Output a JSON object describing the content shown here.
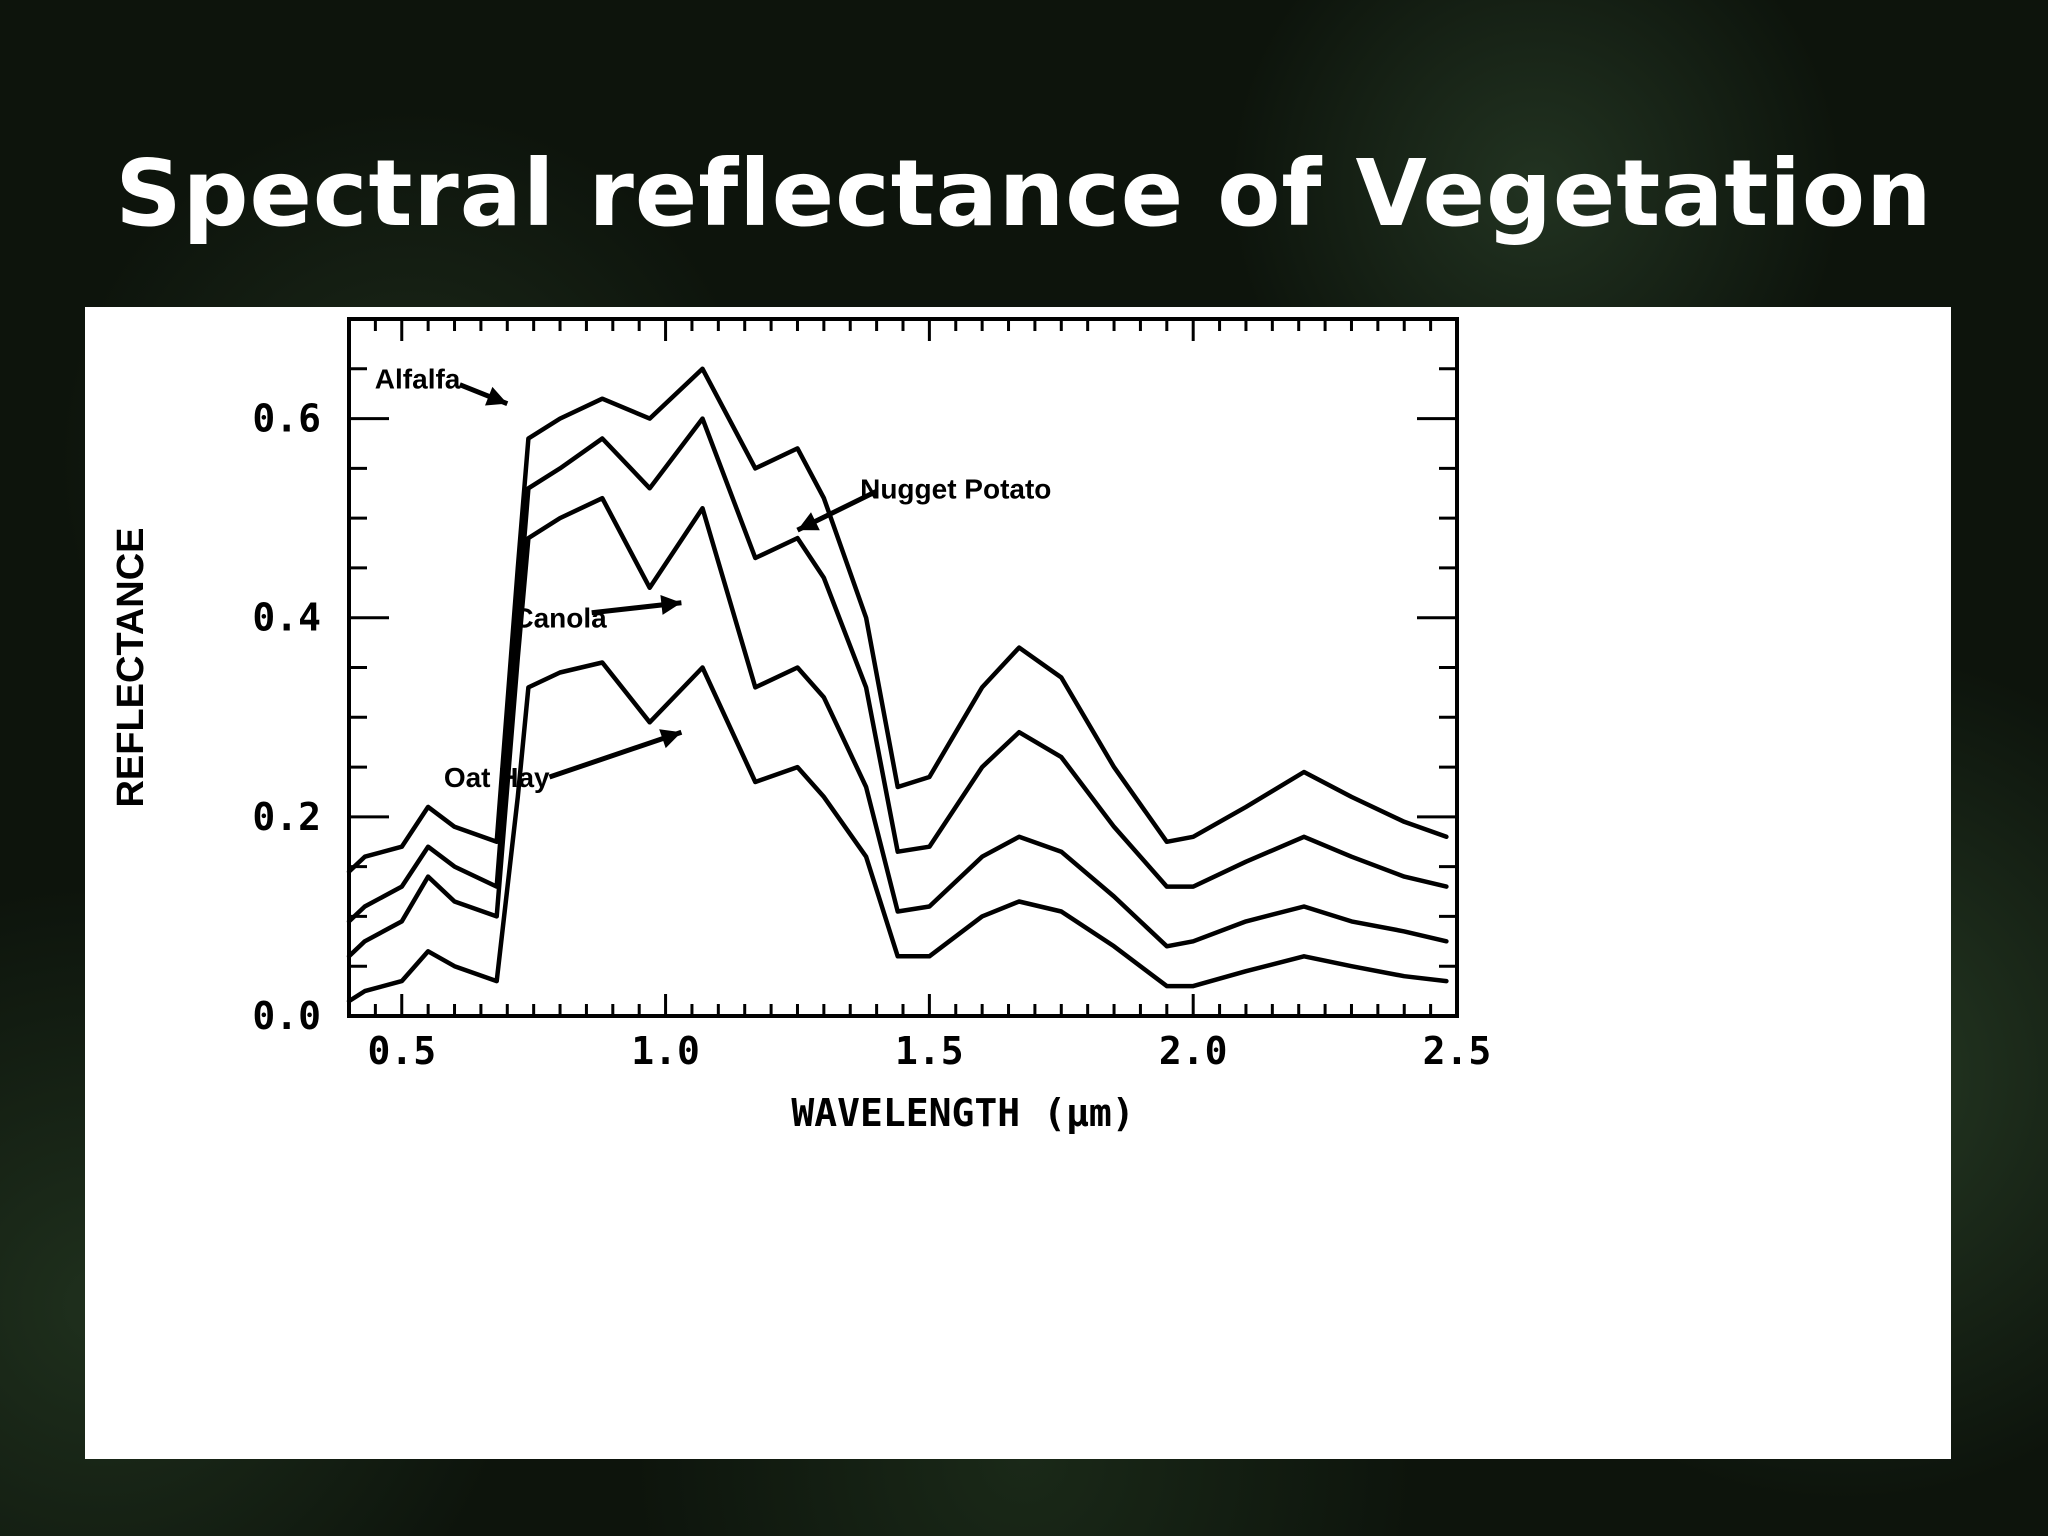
{
  "slide": {
    "title": "Spectral reflectance of Vegetation"
  },
  "chart_data": {
    "type": "line",
    "xlabel": "WAVELENGTH (μm)",
    "ylabel": "REFLECTANCE",
    "xlim": [
      0.4,
      2.5
    ],
    "ylim": [
      0.0,
      0.7
    ],
    "xticks": [
      "0.5",
      "1.0",
      "1.5",
      "2.0",
      "2.5"
    ],
    "yticks": [
      "0.0",
      "0.2",
      "0.4",
      "0.6"
    ],
    "grid": false,
    "line_color": "#000000",
    "series": [
      {
        "name": "Alfalfa",
        "x": [
          0.4,
          0.43,
          0.5,
          0.55,
          0.6,
          0.68,
          0.72,
          0.74,
          0.8,
          0.88,
          0.97,
          1.07,
          1.17,
          1.25,
          1.3,
          1.38,
          1.44,
          1.5,
          1.6,
          1.67,
          1.75,
          1.85,
          1.95,
          2.0,
          2.1,
          2.21,
          2.3,
          2.4,
          2.48
        ],
        "y": [
          0.145,
          0.16,
          0.17,
          0.21,
          0.19,
          0.175,
          0.45,
          0.58,
          0.6,
          0.62,
          0.6,
          0.65,
          0.55,
          0.57,
          0.52,
          0.4,
          0.23,
          0.24,
          0.33,
          0.37,
          0.34,
          0.25,
          0.175,
          0.18,
          0.21,
          0.245,
          0.22,
          0.195,
          0.18
        ]
      },
      {
        "name": "Nugget Potato",
        "x": [
          0.4,
          0.43,
          0.5,
          0.55,
          0.6,
          0.68,
          0.72,
          0.74,
          0.8,
          0.88,
          0.97,
          1.07,
          1.17,
          1.25,
          1.3,
          1.38,
          1.44,
          1.5,
          1.6,
          1.67,
          1.75,
          1.85,
          1.95,
          2.0,
          2.1,
          2.21,
          2.3,
          2.4,
          2.48
        ],
        "y": [
          0.095,
          0.11,
          0.13,
          0.17,
          0.15,
          0.13,
          0.4,
          0.53,
          0.55,
          0.58,
          0.53,
          0.6,
          0.46,
          0.48,
          0.44,
          0.33,
          0.165,
          0.17,
          0.25,
          0.285,
          0.26,
          0.19,
          0.13,
          0.13,
          0.155,
          0.18,
          0.16,
          0.14,
          0.13
        ]
      },
      {
        "name": "Canola",
        "x": [
          0.4,
          0.43,
          0.5,
          0.55,
          0.6,
          0.68,
          0.72,
          0.74,
          0.8,
          0.88,
          0.97,
          1.07,
          1.17,
          1.25,
          1.3,
          1.38,
          1.44,
          1.5,
          1.6,
          1.67,
          1.75,
          1.85,
          1.95,
          2.0,
          2.1,
          2.21,
          2.3,
          2.4,
          2.48
        ],
        "y": [
          0.06,
          0.075,
          0.095,
          0.14,
          0.115,
          0.1,
          0.36,
          0.48,
          0.5,
          0.52,
          0.43,
          0.51,
          0.33,
          0.35,
          0.32,
          0.23,
          0.105,
          0.11,
          0.16,
          0.18,
          0.165,
          0.12,
          0.07,
          0.075,
          0.095,
          0.11,
          0.095,
          0.085,
          0.075
        ]
      },
      {
        "name": "Oat Hay",
        "x": [
          0.4,
          0.43,
          0.5,
          0.55,
          0.6,
          0.68,
          0.72,
          0.74,
          0.8,
          0.88,
          0.97,
          1.07,
          1.17,
          1.25,
          1.3,
          1.38,
          1.44,
          1.5,
          1.6,
          1.67,
          1.75,
          1.85,
          1.95,
          2.0,
          2.1,
          2.21,
          2.3,
          2.4,
          2.48
        ],
        "y": [
          0.015,
          0.025,
          0.035,
          0.065,
          0.05,
          0.035,
          0.22,
          0.33,
          0.345,
          0.355,
          0.295,
          0.35,
          0.235,
          0.25,
          0.22,
          0.16,
          0.06,
          0.06,
          0.1,
          0.115,
          0.105,
          0.07,
          0.03,
          0.03,
          0.045,
          0.06,
          0.05,
          0.04,
          0.035
        ]
      }
    ]
  }
}
